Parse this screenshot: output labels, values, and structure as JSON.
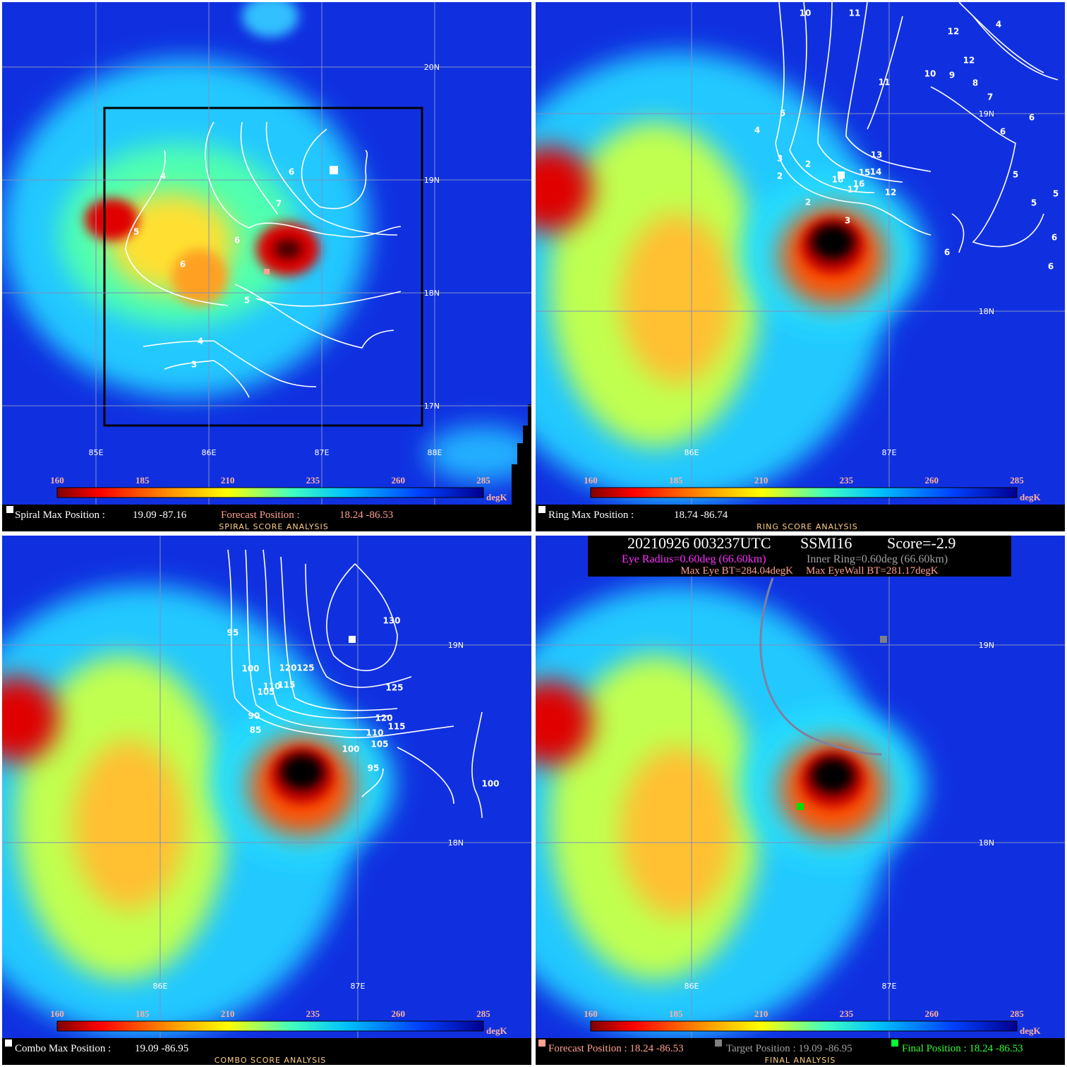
{
  "panels": [
    {
      "lat_labels": [
        "20N",
        "19N",
        "18N",
        "17N"
      ],
      "lon_labels": [
        "85E",
        "86E",
        "87E",
        "88E"
      ],
      "colorbar_ticks": [
        160,
        185,
        210,
        235,
        260,
        285
      ],
      "colorbar_unit": "degK",
      "info": [
        "Spiral Max Position :",
        "19.09 -87.16",
        "Forecast Position :",
        "18.24 -86.53"
      ],
      "footer": "SPIRAL SCORE ANALYSIS",
      "contour_labels": [
        "4",
        "5",
        "6",
        "6",
        "5",
        "4",
        "3",
        "7",
        "6"
      ]
    },
    {
      "lat_labels": [
        "19N",
        "18N"
      ],
      "lon_labels": [
        "86E",
        "87E"
      ],
      "colorbar_ticks": [
        160,
        185,
        210,
        235,
        260,
        285
      ],
      "colorbar_unit": "degK",
      "info": [
        "Ring Max Position :",
        "18.74 -86.74"
      ],
      "footer": "RING SCORE ANALYSIS",
      "contour_labels": [
        "10",
        "11",
        "12",
        "4",
        "12",
        "10",
        "9",
        "8",
        "7",
        "11",
        "5",
        "4",
        "6",
        "6",
        "5",
        "5",
        "5",
        "3",
        "2",
        "2",
        "13",
        "14",
        "15",
        "16",
        "16",
        "17",
        "12",
        "2",
        "3",
        "6",
        "6",
        "6"
      ]
    },
    {
      "lat_labels": [
        "19N",
        "18N"
      ],
      "lon_labels": [
        "86E",
        "87E"
      ],
      "colorbar_ticks": [
        160,
        185,
        210,
        235,
        260,
        285
      ],
      "colorbar_unit": "degK",
      "info": [
        "Combo Max Position :",
        "19.09 -86.95"
      ],
      "footer": "COMBO SCORE ANALYSIS",
      "contour_labels": [
        "130",
        "95",
        "100",
        "120",
        "125",
        "110",
        "115",
        "105",
        "125",
        "90",
        "85",
        "120",
        "115",
        "110",
        "105",
        "100",
        "95",
        "100"
      ]
    },
    {
      "lat_labels": [
        "19N",
        "18N"
      ],
      "lon_labels": [
        "86E",
        "87E"
      ],
      "colorbar_ticks": [
        160,
        185,
        210,
        235,
        260,
        285
      ],
      "colorbar_unit": "degK",
      "info": [
        "Forecast Position : 18.24 -86.53",
        "Target Position : 19.09 -86.95",
        "Final Position : 18.24 -86.53"
      ],
      "footer": "FINAL ANALYSIS",
      "header": [
        "20210926 003237UTC",
        "SSMI16",
        "Score=-2.9",
        "Eye Radius=0.60deg (66.60km)",
        "Inner Ring=0.60deg (66.60km)",
        "Max Eye BT=284.04degK",
        "Max EyeWall BT=281.17degK"
      ]
    }
  ]
}
